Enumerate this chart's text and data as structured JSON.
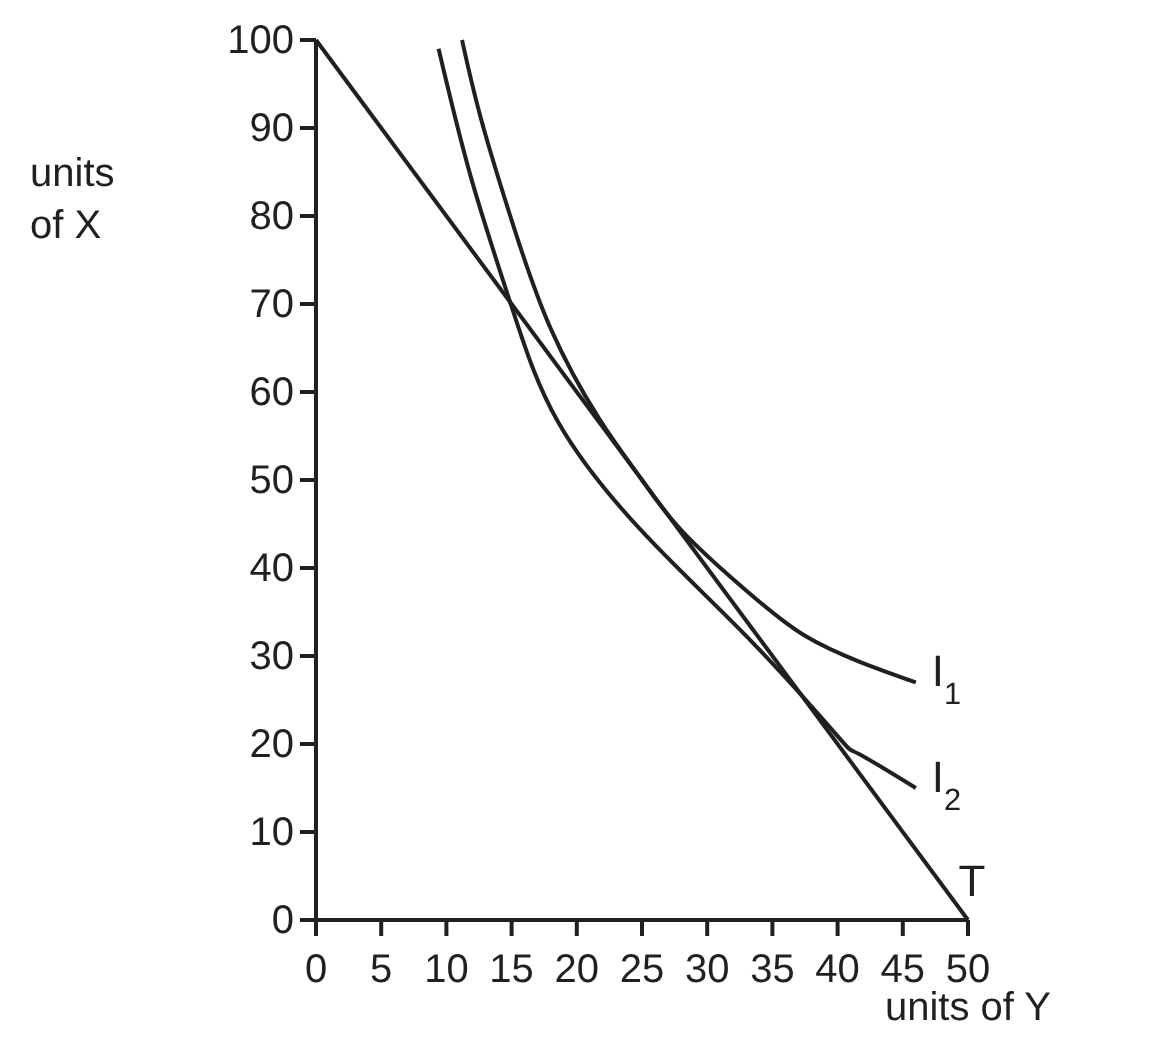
{
  "chart_data": {
    "type": "line",
    "xlabel": "units of Y",
    "ylabel": "units of X",
    "xlim": [
      0,
      50
    ],
    "ylim": [
      0,
      100
    ],
    "xticks": [
      0,
      5,
      10,
      15,
      20,
      25,
      30,
      35,
      40,
      45,
      50
    ],
    "yticks": [
      0,
      10,
      20,
      30,
      40,
      50,
      60,
      70,
      80,
      90,
      100
    ],
    "grid": false,
    "legend": false,
    "marker": "none",
    "line_style": "solid",
    "series": [
      {
        "name": "I$_{1}$",
        "color": "#231f20",
        "x": [
          11.2,
          12.7,
          15.2,
          18,
          21.7,
          25,
          28.2,
          33.5,
          37.5,
          41.6,
          46
        ],
        "values": [
          100,
          90.8,
          78.6,
          67.2,
          57,
          50,
          44,
          36.8,
          32.3,
          29.4,
          27
        ]
      },
      {
        "name": "I$_{2}$",
        "color": "#231f20",
        "x": [
          9.4,
          11.9,
          15,
          18.6,
          25.3,
          33.5,
          40,
          41.6,
          46
        ],
        "values": [
          99,
          84.3,
          69.7,
          56.5,
          43.7,
          31.5,
          20.9,
          18.9,
          15
        ]
      },
      {
        "name": "T",
        "color": "#231f20",
        "x": [
          0,
          50
        ],
        "values": [
          100,
          0
        ]
      }
    ]
  }
}
